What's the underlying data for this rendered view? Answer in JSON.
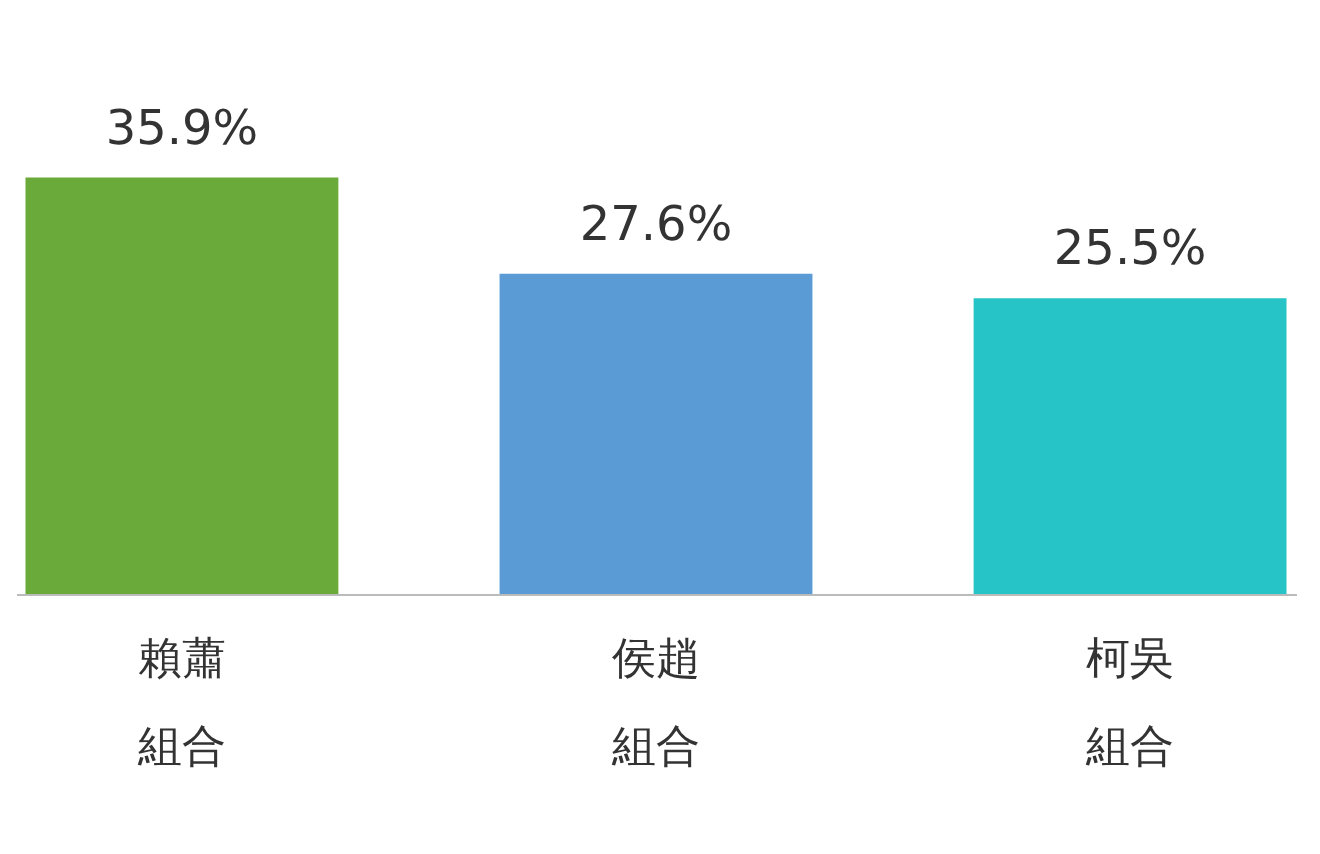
{
  "chart_data": {
    "type": "bar",
    "categories": [
      "賴蕭組合",
      "侯趙組合",
      "柯吳組合"
    ],
    "values": [
      35.9,
      27.6,
      25.5
    ],
    "colors": [
      "#6aaa3a",
      "#5b9bd5",
      "#26c4c6"
    ],
    "value_labels": [
      "35.9%",
      "27.6%",
      "25.5%"
    ]
  }
}
